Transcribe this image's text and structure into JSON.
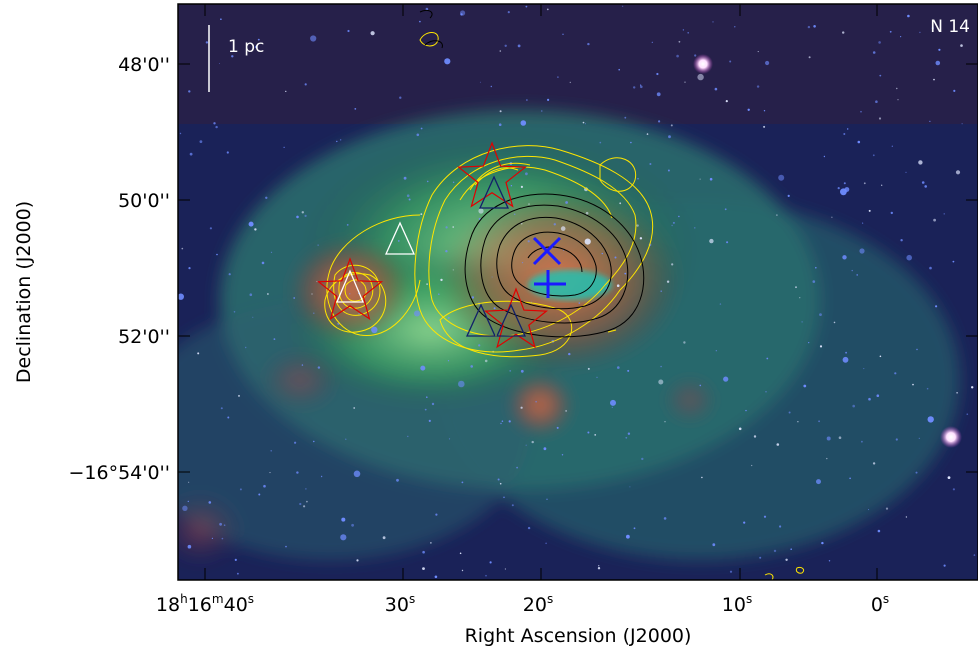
{
  "figure": {
    "region_label": "N 14",
    "scale_bar_label": "1 pc",
    "x_axis": {
      "title": "Right Ascension (J2000)",
      "ticks": [
        {
          "value": "18h16m40s",
          "h": "18",
          "m": "16",
          "s": "40"
        },
        {
          "value": "30s",
          "s": "30"
        },
        {
          "value": "20s",
          "s": "20"
        },
        {
          "value": "10s",
          "s": "10"
        },
        {
          "value": "0s",
          "s": "0"
        }
      ]
    },
    "y_axis": {
      "title": "Declination (J2000)",
      "ticks": [
        "48'0''",
        "50'0''",
        "52'0''",
        "−16°54'0''"
      ]
    },
    "colors": {
      "red_channel": "#d04030",
      "green_channel": "#44bb66",
      "blue_channel": "#1a2a9a",
      "contour_yellow": "#ffe600",
      "contour_black": "#000000",
      "star_marker": "#e00000",
      "triangle_dark": "#12206a",
      "triangle_white": "#ffffff",
      "cross_marker": "#1a1aff",
      "cyan_blob": "#20c0b0"
    }
  }
}
